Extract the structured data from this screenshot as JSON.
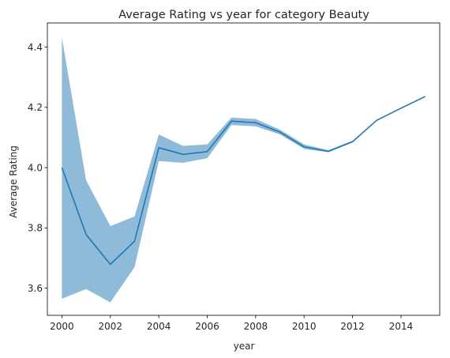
{
  "chart_data": {
    "type": "line",
    "title": "Average Rating vs year for category Beauty",
    "xlabel": "year",
    "ylabel": "Average Rating",
    "xlim": [
      1999.4,
      2015.6
    ],
    "ylim": [
      3.51,
      4.48
    ],
    "xticks": [
      2000,
      2002,
      2004,
      2006,
      2008,
      2010,
      2012,
      2014
    ],
    "yticks": [
      3.6,
      3.8,
      4.0,
      4.2,
      4.4
    ],
    "ytick_labels": [
      "3.6",
      "3.8",
      "4.0",
      "4.2",
      "4.4"
    ],
    "grid": false,
    "legend": "none",
    "series": [
      {
        "x": [
          2000,
          2001,
          2002,
          2003,
          2004,
          2005,
          2006,
          2007,
          2008,
          2009,
          2010,
          2011,
          2012,
          2013,
          2014,
          2015
        ],
        "values": [
          4.0,
          3.778,
          3.679,
          3.756,
          4.066,
          4.044,
          4.053,
          4.154,
          4.149,
          4.118,
          4.069,
          4.054,
          4.086,
          4.157,
          4.197,
          4.236
        ],
        "band_lower": [
          3.565,
          3.597,
          3.553,
          3.67,
          4.022,
          4.016,
          4.031,
          4.141,
          4.137,
          4.11,
          4.062,
          4.051,
          4.083,
          4.157,
          4.197,
          4.236
        ],
        "band_upper": [
          4.431,
          3.958,
          3.806,
          3.838,
          4.11,
          4.072,
          4.077,
          4.166,
          4.161,
          4.126,
          4.077,
          4.058,
          4.089,
          4.157,
          4.197,
          4.236
        ]
      }
    ],
    "colors": {
      "line": "#1f77b4",
      "band": "#1f77b4",
      "axis": "#000000",
      "text": "#262626"
    }
  }
}
